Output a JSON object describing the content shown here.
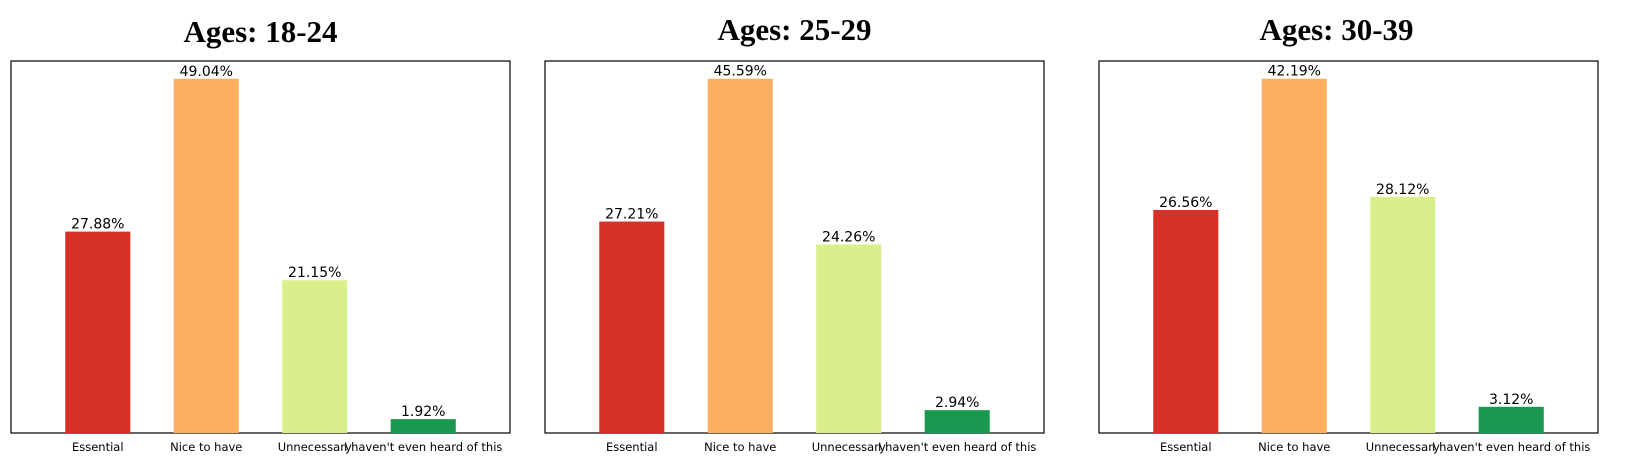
{
  "chart_data": [
    {
      "type": "bar",
      "title": "Ages: 18-24",
      "categories": [
        "Essential",
        "Nice to have",
        "Unnecessary",
        "I haven't even heard of this"
      ],
      "values": [
        27.88,
        49.04,
        21.15,
        1.92
      ],
      "value_labels": [
        "27.88%",
        "49.04%",
        "21.15%",
        "1.92%"
      ],
      "colors": [
        "#d73027",
        "#fdae61",
        "#d9ef8b",
        "#1a9850"
      ],
      "xlabel": "",
      "ylabel": "",
      "ylim": [
        0,
        51.5
      ],
      "y_ticks_visible": false,
      "grid": false,
      "legend": "none"
    },
    {
      "type": "bar",
      "title": "Ages: 25-29",
      "categories": [
        "Essential",
        "Nice to have",
        "Unnecessary",
        "I haven't even heard of this"
      ],
      "values": [
        27.21,
        45.59,
        24.26,
        2.94
      ],
      "value_labels": [
        "27.21%",
        "45.59%",
        "24.26%",
        "2.94%"
      ],
      "colors": [
        "#d73027",
        "#fdae61",
        "#d9ef8b",
        "#1a9850"
      ],
      "xlabel": "",
      "ylabel": "",
      "ylim": [
        0,
        47.87
      ],
      "y_ticks_visible": false,
      "grid": false,
      "legend": "none"
    },
    {
      "type": "bar",
      "title": "Ages: 30-39",
      "categories": [
        "Essential",
        "Nice to have",
        "Unnecessary",
        "I haven't even heard of this"
      ],
      "values": [
        26.56,
        42.19,
        28.12,
        3.12
      ],
      "value_labels": [
        "26.56%",
        "42.19%",
        "28.12%",
        "3.12%"
      ],
      "colors": [
        "#d73027",
        "#fdae61",
        "#d9ef8b",
        "#1a9850"
      ],
      "xlabel": "",
      "ylabel": "",
      "ylim": [
        0,
        44.3
      ],
      "y_ticks_visible": false,
      "grid": false,
      "legend": "none"
    }
  ]
}
